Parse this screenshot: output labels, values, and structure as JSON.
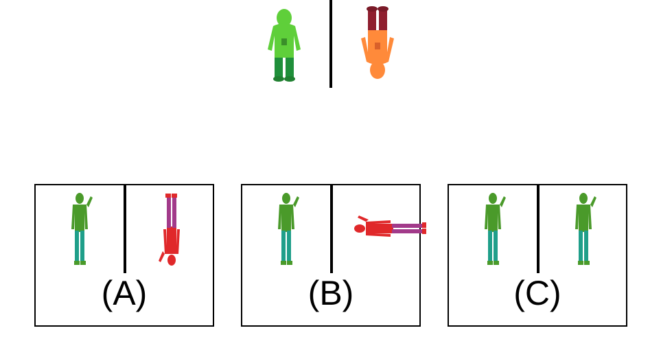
{
  "options": [
    {
      "id": "A",
      "label": "(A)"
    },
    {
      "id": "B",
      "label": "(B)"
    },
    {
      "id": "C",
      "label": "(C)"
    }
  ],
  "colors": {
    "hoodie_green": "#5fcf3a",
    "hoodie_pants": "#1f8f3a",
    "hoodie_orange": "#ff8a3a",
    "hoodie_maroon": "#8f1f2f",
    "hero_green": "#4a9a2a",
    "hero_teal": "#1f9f8a",
    "hero_red": "#e0282a",
    "hero_purple": "#a23a8a"
  }
}
